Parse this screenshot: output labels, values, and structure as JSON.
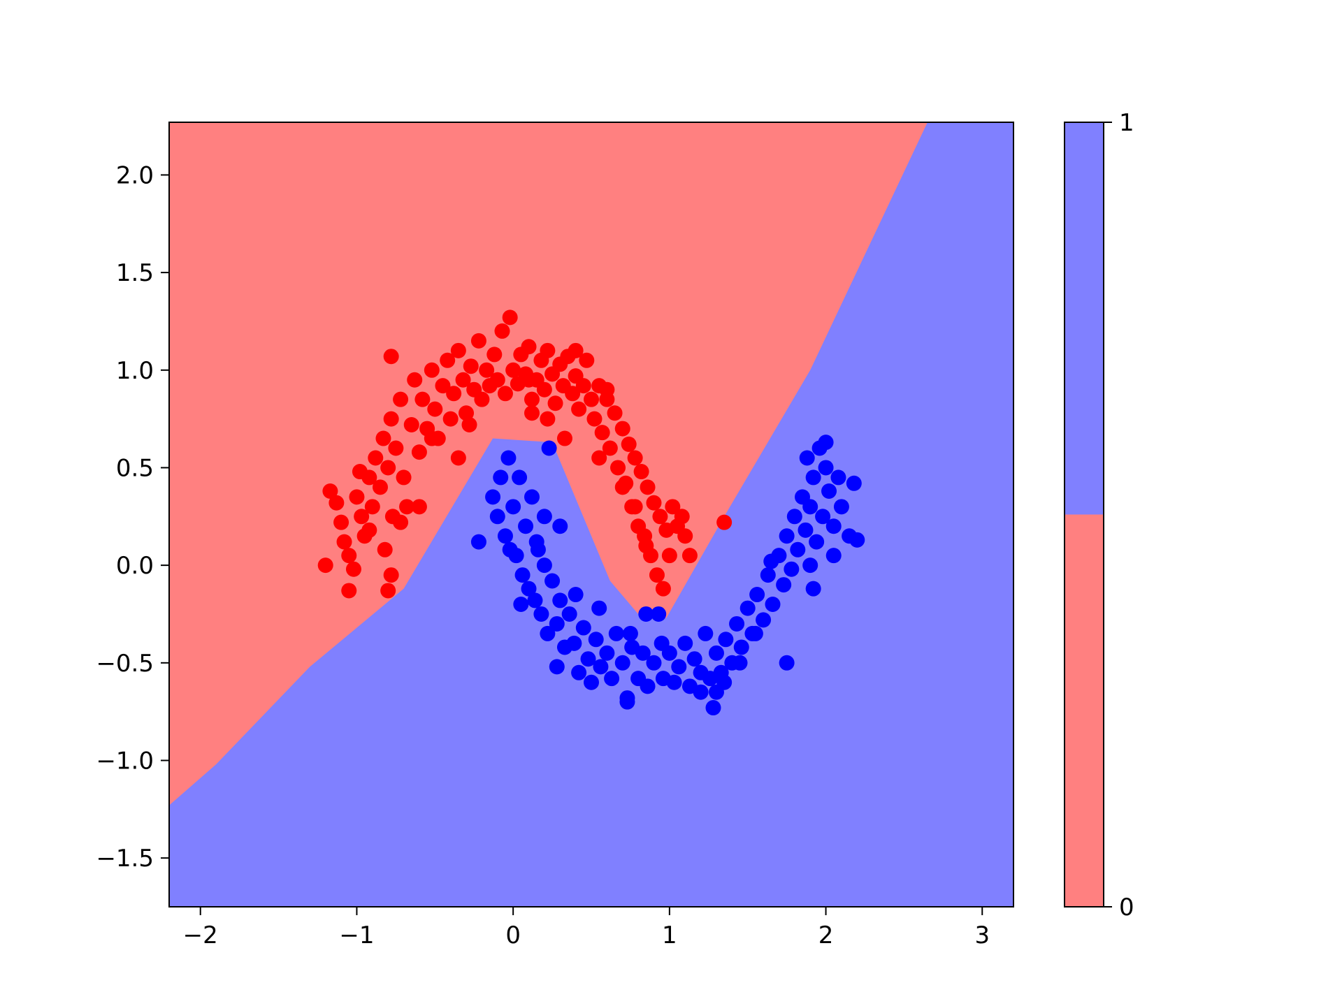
{
  "chart_data": {
    "type": "scatter",
    "title": "",
    "xlabel": "",
    "ylabel": "",
    "xlim": [
      -2.2,
      3.2
    ],
    "ylim": [
      -1.75,
      2.27
    ],
    "xticks": [
      -2,
      -1,
      0,
      1,
      2,
      3
    ],
    "yticks": [
      -1.5,
      -1.0,
      -0.5,
      0.0,
      0.5,
      1.0,
      1.5,
      2.0
    ],
    "xtick_labels": [
      "−2",
      "−1",
      "0",
      "1",
      "2",
      "3"
    ],
    "ytick_labels": [
      "−1.5",
      "−1.0",
      "−0.5",
      "0.0",
      "0.5",
      "1.0",
      "1.5",
      "2.0"
    ],
    "grid": false,
    "decision_regions": {
      "class0_color": "#ff8080",
      "class1_color": "#8080ff",
      "boundary": [
        [
          -2.2,
          -1.23
        ],
        [
          -1.9,
          -1.02
        ],
        [
          -1.3,
          -0.52
        ],
        [
          -0.7,
          -0.12
        ],
        [
          -0.13,
          0.65
        ],
        [
          0.25,
          0.63
        ],
        [
          0.62,
          -0.08
        ],
        [
          0.8,
          -0.25
        ],
        [
          0.98,
          -0.27
        ],
        [
          1.35,
          0.25
        ],
        [
          1.9,
          1.0
        ],
        [
          2.65,
          2.27
        ]
      ]
    },
    "colorbar": {
      "ticks": [
        0,
        1
      ],
      "tick_labels": [
        "0",
        "1"
      ],
      "bands": [
        {
          "from": 0,
          "to": 0.5,
          "color": "#ff8080"
        },
        {
          "from": 0.5,
          "to": 1,
          "color": "#8080ff"
        }
      ]
    },
    "series": [
      {
        "color": "#ff0000",
        "points": [
          [
            -1.17,
            0.38
          ],
          [
            -1.13,
            0.32
          ],
          [
            -1.1,
            0.22
          ],
          [
            -1.08,
            0.12
          ],
          [
            -1.05,
            0.05
          ],
          [
            -1.02,
            -0.02
          ],
          [
            -1.2,
            0.0
          ],
          [
            -1.05,
            -0.13
          ],
          [
            -0.8,
            -0.13
          ],
          [
            -0.78,
            -0.05
          ],
          [
            -1.0,
            0.35
          ],
          [
            -0.97,
            0.25
          ],
          [
            -0.95,
            0.15
          ],
          [
            -0.92,
            0.45
          ],
          [
            -0.9,
            0.3
          ],
          [
            -0.88,
            0.55
          ],
          [
            -0.85,
            0.4
          ],
          [
            -0.83,
            0.65
          ],
          [
            -0.8,
            0.5
          ],
          [
            -0.78,
            0.75
          ],
          [
            -0.77,
            0.25
          ],
          [
            -0.75,
            0.6
          ],
          [
            -0.72,
            0.85
          ],
          [
            -0.7,
            0.45
          ],
          [
            -0.68,
            0.3
          ],
          [
            -0.65,
            0.72
          ],
          [
            -0.63,
            0.95
          ],
          [
            -0.6,
            0.58
          ],
          [
            -0.58,
            0.85
          ],
          [
            -0.55,
            0.7
          ],
          [
            -0.52,
            1.0
          ],
          [
            -0.5,
            0.8
          ],
          [
            -0.48,
            0.65
          ],
          [
            -0.45,
            0.92
          ],
          [
            -0.42,
            1.05
          ],
          [
            -0.4,
            0.75
          ],
          [
            -0.38,
            0.88
          ],
          [
            -0.35,
            1.1
          ],
          [
            -0.32,
            0.95
          ],
          [
            -0.3,
            0.78
          ],
          [
            -0.27,
            1.02
          ],
          [
            -0.25,
            0.9
          ],
          [
            -0.22,
            1.15
          ],
          [
            -0.2,
            0.85
          ],
          [
            -0.17,
            1.0
          ],
          [
            -0.15,
            0.92
          ],
          [
            -0.12,
            1.08
          ],
          [
            -0.1,
            0.95
          ],
          [
            -0.07,
            1.2
          ],
          [
            -0.05,
            0.88
          ],
          [
            -0.02,
            1.27
          ],
          [
            0.0,
            1.0
          ],
          [
            0.03,
            0.93
          ],
          [
            0.05,
            1.08
          ],
          [
            0.08,
            0.98
          ],
          [
            0.1,
            1.12
          ],
          [
            0.12,
            0.85
          ],
          [
            0.15,
            0.95
          ],
          [
            0.18,
            1.05
          ],
          [
            0.2,
            0.9
          ],
          [
            0.22,
            1.1
          ],
          [
            0.25,
            0.98
          ],
          [
            0.27,
            0.83
          ],
          [
            0.3,
            1.03
          ],
          [
            0.32,
            0.92
          ],
          [
            0.35,
            1.07
          ],
          [
            0.38,
            0.88
          ],
          [
            0.4,
            0.97
          ],
          [
            0.42,
            0.8
          ],
          [
            0.45,
            0.92
          ],
          [
            0.47,
            1.05
          ],
          [
            0.5,
            0.85
          ],
          [
            0.52,
            0.75
          ],
          [
            0.55,
            0.92
          ],
          [
            0.57,
            0.68
          ],
          [
            0.6,
            0.85
          ],
          [
            0.62,
            0.6
          ],
          [
            0.65,
            0.78
          ],
          [
            0.67,
            0.5
          ],
          [
            0.7,
            0.7
          ],
          [
            0.72,
            0.42
          ],
          [
            0.74,
            0.62
          ],
          [
            0.76,
            0.3
          ],
          [
            0.78,
            0.55
          ],
          [
            0.8,
            0.2
          ],
          [
            0.82,
            0.48
          ],
          [
            0.84,
            0.15
          ],
          [
            0.86,
            0.4
          ],
          [
            0.88,
            0.05
          ],
          [
            0.9,
            0.32
          ],
          [
            0.92,
            -0.05
          ],
          [
            0.94,
            0.25
          ],
          [
            0.96,
            -0.12
          ],
          [
            0.98,
            0.18
          ],
          [
            1.0,
            0.05
          ],
          [
            1.02,
            0.3
          ],
          [
            1.05,
            0.2
          ],
          [
            1.08,
            0.25
          ],
          [
            1.1,
            0.15
          ],
          [
            1.13,
            0.05
          ],
          [
            1.35,
            0.22
          ],
          [
            0.33,
            0.65
          ],
          [
            0.22,
            0.75
          ],
          [
            0.12,
            0.78
          ],
          [
            -0.28,
            0.72
          ],
          [
            -0.52,
            0.65
          ],
          [
            -0.98,
            0.48
          ],
          [
            -0.72,
            0.22
          ],
          [
            -0.78,
            1.07
          ],
          [
            0.78,
            0.3
          ],
          [
            -0.6,
            0.3
          ],
          [
            -0.82,
            0.08
          ],
          [
            0.55,
            0.55
          ],
          [
            0.7,
            0.4
          ],
          [
            0.85,
            0.1
          ],
          [
            -0.92,
            0.18
          ],
          [
            0.1,
            0.95
          ],
          [
            0.4,
            1.1
          ],
          [
            0.6,
            0.9
          ],
          [
            -0.35,
            0.55
          ]
        ]
      },
      {
        "color": "#0000ff",
        "points": [
          [
            -0.22,
            0.12
          ],
          [
            -0.13,
            0.35
          ],
          [
            -0.1,
            0.25
          ],
          [
            -0.08,
            0.45
          ],
          [
            -0.05,
            0.15
          ],
          [
            -0.03,
            0.55
          ],
          [
            0.0,
            0.3
          ],
          [
            0.02,
            0.05
          ],
          [
            0.04,
            0.45
          ],
          [
            0.06,
            -0.05
          ],
          [
            0.08,
            0.2
          ],
          [
            0.1,
            -0.12
          ],
          [
            0.12,
            0.35
          ],
          [
            0.14,
            -0.18
          ],
          [
            0.16,
            0.08
          ],
          [
            0.18,
            -0.25
          ],
          [
            0.2,
            0.0
          ],
          [
            0.22,
            -0.35
          ],
          [
            0.25,
            -0.08
          ],
          [
            0.23,
            0.6
          ],
          [
            0.28,
            -0.3
          ],
          [
            0.3,
            -0.18
          ],
          [
            0.33,
            -0.42
          ],
          [
            0.36,
            -0.25
          ],
          [
            0.39,
            -0.4
          ],
          [
            0.42,
            -0.55
          ],
          [
            0.45,
            -0.32
          ],
          [
            0.48,
            -0.48
          ],
          [
            0.5,
            -0.6
          ],
          [
            0.53,
            -0.38
          ],
          [
            0.56,
            -0.52
          ],
          [
            0.6,
            -0.45
          ],
          [
            0.63,
            -0.58
          ],
          [
            0.66,
            -0.35
          ],
          [
            0.7,
            -0.5
          ],
          [
            0.73,
            -0.68
          ],
          [
            0.76,
            -0.42
          ],
          [
            0.8,
            -0.58
          ],
          [
            0.83,
            -0.45
          ],
          [
            0.86,
            -0.62
          ],
          [
            0.9,
            -0.5
          ],
          [
            0.93,
            -0.25
          ],
          [
            0.96,
            -0.58
          ],
          [
            1.0,
            -0.45
          ],
          [
            1.03,
            -0.6
          ],
          [
            1.06,
            -0.52
          ],
          [
            1.1,
            -0.4
          ],
          [
            1.13,
            -0.62
          ],
          [
            1.16,
            -0.48
          ],
          [
            1.2,
            -0.55
          ],
          [
            1.23,
            -0.35
          ],
          [
            1.26,
            -0.58
          ],
          [
            1.3,
            -0.45
          ],
          [
            1.28,
            -0.73
          ],
          [
            1.33,
            -0.55
          ],
          [
            1.36,
            -0.38
          ],
          [
            1.4,
            -0.5
          ],
          [
            1.43,
            -0.3
          ],
          [
            1.46,
            -0.42
          ],
          [
            1.5,
            -0.22
          ],
          [
            1.53,
            -0.35
          ],
          [
            1.56,
            -0.15
          ],
          [
            1.6,
            -0.28
          ],
          [
            1.63,
            -0.05
          ],
          [
            1.66,
            -0.2
          ],
          [
            1.7,
            0.05
          ],
          [
            1.73,
            -0.1
          ],
          [
            1.75,
            0.15
          ],
          [
            1.78,
            -0.02
          ],
          [
            1.8,
            0.25
          ],
          [
            1.82,
            0.08
          ],
          [
            1.85,
            0.35
          ],
          [
            1.87,
            0.18
          ],
          [
            1.88,
            0.55
          ],
          [
            1.9,
            0.3
          ],
          [
            1.92,
            0.45
          ],
          [
            1.94,
            0.12
          ],
          [
            1.96,
            0.6
          ],
          [
            1.98,
            0.25
          ],
          [
            2.0,
            0.5
          ],
          [
            2.02,
            0.38
          ],
          [
            2.05,
            0.2
          ],
          [
            2.08,
            0.45
          ],
          [
            2.1,
            0.3
          ],
          [
            2.15,
            0.15
          ],
          [
            2.18,
            0.42
          ],
          [
            2.2,
            0.13
          ],
          [
            2.0,
            0.63
          ],
          [
            1.92,
            -0.12
          ],
          [
            1.75,
            -0.5
          ],
          [
            0.73,
            -0.7
          ],
          [
            1.3,
            -0.65
          ],
          [
            0.85,
            -0.25
          ],
          [
            0.05,
            -0.2
          ],
          [
            0.2,
            0.25
          ],
          [
            0.3,
            0.2
          ],
          [
            0.15,
            0.12
          ],
          [
            0.4,
            -0.15
          ],
          [
            1.2,
            -0.65
          ],
          [
            1.55,
            -0.35
          ],
          [
            0.95,
            -0.4
          ],
          [
            0.55,
            -0.22
          ],
          [
            1.65,
            0.02
          ],
          [
            1.9,
            0.0
          ],
          [
            0.28,
            -0.52
          ],
          [
            0.75,
            -0.35
          ],
          [
            1.35,
            -0.6
          ],
          [
            1.45,
            -0.5
          ],
          [
            2.05,
            0.05
          ],
          [
            -0.02,
            0.08
          ]
        ]
      }
    ]
  }
}
